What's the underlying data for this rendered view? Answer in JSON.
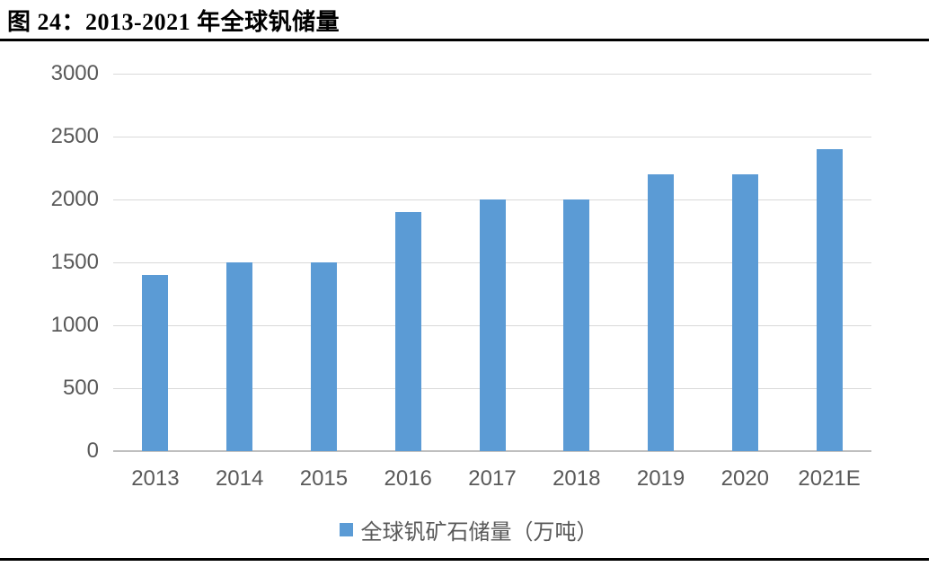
{
  "figure": {
    "title": "图 24：2013-2021 年全球钒储量"
  },
  "chart_data": {
    "type": "bar",
    "title": "图 24：2013-2021 年全球钒储量",
    "categories": [
      "2013",
      "2014",
      "2015",
      "2016",
      "2017",
      "2018",
      "2019",
      "2020",
      "2021E"
    ],
    "values": [
      1400,
      1500,
      1500,
      1900,
      2000,
      2000,
      2200,
      2200,
      2400
    ],
    "series_name": "全球钒矿石储量（万吨）",
    "xlabel": "",
    "ylabel": "",
    "ylim": [
      0,
      3000
    ],
    "yticks": [
      0,
      500,
      1000,
      1500,
      2000,
      2500,
      3000
    ],
    "grid": true,
    "legend_position": "bottom",
    "colors": {
      "bar": "#5B9BD5",
      "legend_marker": "#5B9BD5",
      "gridline": "#D9D9D9",
      "axis_line": "#BFBFBF",
      "tick_label": "#595959",
      "legend_text": "#595959",
      "title_text": "#000000",
      "rule": "#000000"
    }
  }
}
